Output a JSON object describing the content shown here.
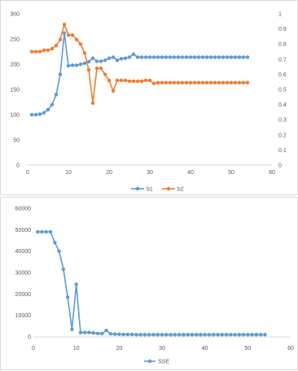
{
  "chart_data": [
    {
      "type": "line",
      "title": "",
      "x": [
        1,
        2,
        3,
        4,
        5,
        6,
        7,
        8,
        9,
        10,
        11,
        12,
        13,
        14,
        15,
        16,
        17,
        18,
        19,
        20,
        21,
        22,
        23,
        24,
        25,
        26,
        27,
        28,
        29,
        30,
        31,
        32,
        33,
        34,
        35,
        36,
        37,
        38,
        39,
        40,
        41,
        42,
        43,
        44,
        45,
        46,
        47,
        48,
        49,
        50,
        51,
        52,
        53,
        54
      ],
      "xlim": [
        0,
        60
      ],
      "xticks": [
        "0",
        "10",
        "20",
        "30",
        "40",
        "50",
        "60"
      ],
      "ylim_left": [
        0,
        300
      ],
      "yticks_left": [
        "0",
        "50",
        "100",
        "150",
        "200",
        "250",
        "300"
      ],
      "ylim_right": [
        0,
        1
      ],
      "yticks_right": [
        "0",
        "0.1",
        "0.2",
        "0.3",
        "0.4",
        "0.5",
        "0.6",
        "0.7",
        "0.8",
        "0.9",
        "1"
      ],
      "grid": false,
      "legend_position": "bottom",
      "series": [
        {
          "name": "b1",
          "axis": "left",
          "color": "#5b9bd5",
          "values": [
            100,
            100,
            101,
            104,
            110,
            120,
            140,
            180,
            262,
            197,
            198,
            198,
            200,
            202,
            205,
            212,
            206,
            206,
            208,
            212,
            214,
            208,
            211,
            212,
            214,
            220,
            214,
            214,
            214,
            214,
            214,
            214,
            214,
            214,
            214,
            214,
            214,
            214,
            214,
            214,
            214,
            214,
            214,
            214,
            214,
            214,
            214,
            214,
            214,
            214,
            214,
            214,
            214,
            214
          ]
        },
        {
          "name": "b2",
          "axis": "right",
          "color": "#ed7d31",
          "values": [
            0.75,
            0.75,
            0.75,
            0.76,
            0.76,
            0.77,
            0.79,
            0.83,
            0.93,
            0.86,
            0.86,
            0.83,
            0.8,
            0.74,
            0.63,
            0.41,
            0.64,
            0.64,
            0.6,
            0.56,
            0.49,
            0.56,
            0.56,
            0.56,
            0.555,
            0.555,
            0.555,
            0.555,
            0.56,
            0.56,
            0.54,
            0.545,
            0.545,
            0.545,
            0.545,
            0.545,
            0.545,
            0.545,
            0.545,
            0.545,
            0.545,
            0.545,
            0.545,
            0.545,
            0.545,
            0.545,
            0.545,
            0.545,
            0.545,
            0.545,
            0.545,
            0.545,
            0.545,
            0.545
          ]
        }
      ]
    },
    {
      "type": "line",
      "title": "",
      "x": [
        1,
        2,
        3,
        4,
        5,
        6,
        7,
        8,
        9,
        10,
        11,
        12,
        13,
        14,
        15,
        16,
        17,
        18,
        19,
        20,
        21,
        22,
        23,
        24,
        25,
        26,
        27,
        28,
        29,
        30,
        31,
        32,
        33,
        34,
        35,
        36,
        37,
        38,
        39,
        40,
        41,
        42,
        43,
        44,
        45,
        46,
        47,
        48,
        49,
        50,
        51,
        52,
        53,
        54
      ],
      "xlim": [
        0,
        60
      ],
      "xticks": [
        "0",
        "10",
        "20",
        "30",
        "40",
        "50",
        "60"
      ],
      "ylim": [
        0,
        60000
      ],
      "yticks": [
        "0",
        "10000",
        "20000",
        "30000",
        "40000",
        "50000",
        "60000"
      ],
      "grid": false,
      "legend_position": "bottom",
      "series": [
        {
          "name": "SSE",
          "color": "#5b9bd5",
          "values": [
            49000,
            49000,
            49000,
            49000,
            44000,
            40000,
            31500,
            18500,
            3500,
            24500,
            2000,
            2000,
            2000,
            1800,
            1600,
            1500,
            3000,
            1400,
            1300,
            1200,
            1100,
            1100,
            1100,
            1000,
            1000,
            1000,
            1000,
            1000,
            1000,
            1000,
            1000,
            1000,
            1000,
            1000,
            1000,
            1000,
            1000,
            1000,
            1000,
            1000,
            1000,
            1000,
            1000,
            1000,
            1000,
            1000,
            1000,
            1000,
            1000,
            1000,
            1000,
            1000,
            1000,
            1000
          ]
        }
      ]
    }
  ]
}
